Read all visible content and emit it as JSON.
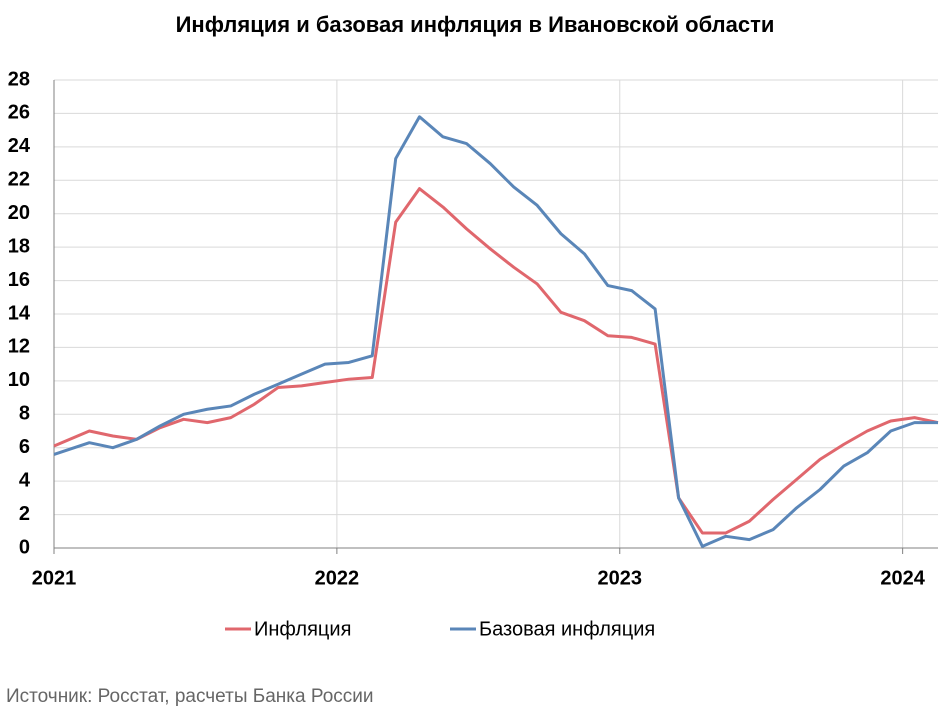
{
  "chart_data": {
    "type": "line",
    "title": "Инфляция и базовая инфляция в Ивановской области",
    "source": "Источник: Росстат, расчеты Банка России",
    "x": [
      2021,
      2021.125,
      2021.208,
      2021.292,
      2021.375,
      2021.458,
      2021.542,
      2021.625,
      2021.708,
      2021.792,
      2021.875,
      2021.958,
      2022.042,
      2022.125,
      2022.208,
      2022.292,
      2022.375,
      2022.458,
      2022.542,
      2022.625,
      2022.708,
      2022.792,
      2022.875,
      2022.958,
      2023.042,
      2023.125,
      2023.208,
      2023.292,
      2023.375,
      2023.458,
      2023.542,
      2023.625,
      2023.708,
      2023.792,
      2023.875,
      2023.958,
      2024.042,
      2024.125
    ],
    "series": [
      {
        "name": "Инфляция",
        "color": "#e0676d",
        "values": [
          6.1,
          7.0,
          6.7,
          6.5,
          7.2,
          7.7,
          7.5,
          7.8,
          8.6,
          9.6,
          9.7,
          9.9,
          10.1,
          10.2,
          19.5,
          21.5,
          20.4,
          19.1,
          17.9,
          16.8,
          15.8,
          14.1,
          13.6,
          12.7,
          12.6,
          12.2,
          3.0,
          0.9,
          0.9,
          1.6,
          2.9,
          4.1,
          5.3,
          6.2,
          7.0,
          7.6,
          7.8,
          7.5
        ]
      },
      {
        "name": "Базовая инфляция",
        "color": "#5a86b8",
        "values": [
          5.6,
          6.3,
          6.0,
          6.5,
          7.3,
          8.0,
          8.3,
          8.5,
          9.2,
          9.8,
          10.4,
          11.0,
          11.1,
          11.5,
          23.3,
          25.8,
          24.6,
          24.2,
          23.0,
          21.6,
          20.5,
          18.8,
          17.6,
          15.7,
          15.4,
          14.3,
          3.0,
          0.1,
          0.7,
          0.5,
          1.1,
          2.4,
          3.5,
          4.9,
          5.7,
          7.0,
          7.5,
          7.5
        ]
      }
    ],
    "xlim": [
      2021,
      2024.125
    ],
    "xticks": [
      2021,
      2022,
      2023,
      2024
    ],
    "ylim": [
      0,
      28
    ],
    "yticks": [
      0,
      2,
      4,
      6,
      8,
      10,
      12,
      14,
      16,
      18,
      20,
      22,
      24,
      26,
      28
    ],
    "grid": true,
    "legend": "bottom"
  }
}
